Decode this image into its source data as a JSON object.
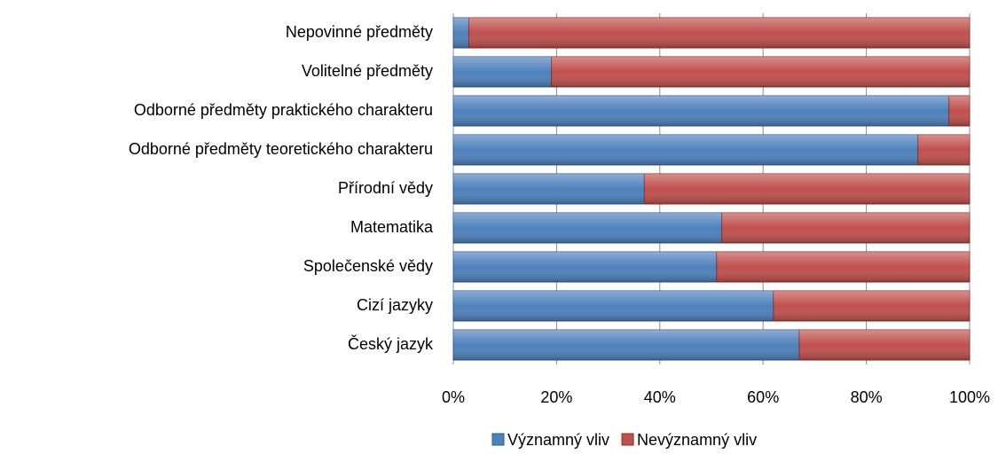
{
  "chart_data": {
    "type": "stacked-bar-horizontal",
    "categories": [
      "Nepovinné předměty",
      "Volitelné předměty",
      "Odborné předměty praktického charakteru",
      "Odborné předměty teoretického charakteru",
      "Přírodní vědy",
      "Matematika",
      "Společenské vědy",
      "Cizí jazyky",
      "Český jazyk"
    ],
    "series": [
      {
        "name": "Významný vliv",
        "color": "#4f81bd",
        "values": [
          3,
          19,
          96,
          90,
          37,
          52,
          51,
          62,
          67
        ]
      },
      {
        "name": "Nevýznamný vliv",
        "color": "#c0504d",
        "values": [
          97,
          81,
          4,
          10,
          63,
          48,
          49,
          38,
          33
        ]
      }
    ],
    "xlim": [
      0,
      100
    ],
    "xticks": [
      {
        "value": 0,
        "label": "0%"
      },
      {
        "value": 20,
        "label": "20%"
      },
      {
        "value": 40,
        "label": "40%"
      },
      {
        "value": 60,
        "label": "60%"
      },
      {
        "value": 80,
        "label": "80%"
      },
      {
        "value": 100,
        "label": "100%"
      }
    ],
    "grid": true,
    "legend": "bottom"
  }
}
